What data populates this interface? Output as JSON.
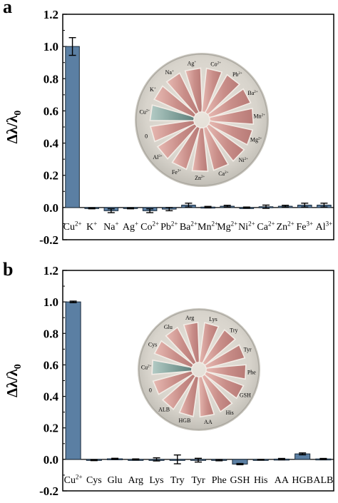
{
  "chart_data": [
    {
      "panel_label": "a",
      "type": "bar",
      "ylabel": "Δλ/λ0",
      "ylim": [
        -0.2,
        1.2
      ],
      "yticks": [
        "-0.2",
        "0.0",
        "0.2",
        "0.4",
        "0.6",
        "0.8",
        "1.0",
        "1.2"
      ],
      "bar_color": "#5b7fa3",
      "categories": [
        {
          "base": "Cu",
          "sup": "2+"
        },
        {
          "base": "K",
          "sup": "+"
        },
        {
          "base": "Na",
          "sup": "+"
        },
        {
          "base": "Ag",
          "sup": "+"
        },
        {
          "base": "Co",
          "sup": "2+"
        },
        {
          "base": "Pb",
          "sup": "2+"
        },
        {
          "base": "Ba",
          "sup": "2+"
        },
        {
          "base": "Mn",
          "sup": "2+"
        },
        {
          "base": "Mg",
          "sup": "2+"
        },
        {
          "base": "Ni",
          "sup": "2+"
        },
        {
          "base": "Ca",
          "sup": "2+"
        },
        {
          "base": "Zn",
          "sup": "2+"
        },
        {
          "base": "Fe",
          "sup": "3+"
        },
        {
          "base": "Al",
          "sup": "3+"
        }
      ],
      "values": [
        1.0,
        -0.005,
        -0.02,
        -0.005,
        -0.02,
        -0.01,
        0.015,
        0.003,
        0.008,
        0.0,
        0.005,
        0.008,
        0.015,
        0.015
      ],
      "errors": [
        0.055,
        0.003,
        0.012,
        0.003,
        0.012,
        0.01,
        0.012,
        0.004,
        0.006,
        0.003,
        0.01,
        0.006,
        0.012,
        0.012
      ],
      "photo_labels": [
        {
          "base": "Ag",
          "sup": "+"
        },
        {
          "base": "Co",
          "sup": "2+"
        },
        {
          "base": "Pb",
          "sup": "2+"
        },
        {
          "base": "Ba",
          "sup": "2+"
        },
        {
          "base": "Mn",
          "sup": "2+"
        },
        {
          "base": "Mg",
          "sup": "2+"
        },
        {
          "base": "Ni",
          "sup": "2+"
        },
        {
          "base": "Ca",
          "sup": "2+"
        },
        {
          "base": "Zn",
          "sup": "2+"
        },
        {
          "base": "Fe",
          "sup": "3+"
        },
        {
          "base": "Al",
          "sup": "3+"
        },
        {
          "base": "0",
          "sup": ""
        },
        {
          "base": "Cu",
          "sup": "2+"
        },
        {
          "base": "K",
          "sup": "+"
        },
        {
          "base": "Na",
          "sup": "+"
        }
      ]
    },
    {
      "panel_label": "b",
      "type": "bar",
      "ylabel": "Δλ/λ0",
      "ylim": [
        -0.2,
        1.2
      ],
      "yticks": [
        "-0.2",
        "0.0",
        "0.2",
        "0.4",
        "0.6",
        "0.8",
        "1.0",
        "1.2"
      ],
      "bar_color": "#5b7fa3",
      "categories": [
        {
          "base": "Cu",
          "sup": "2+"
        },
        {
          "base": "Cys",
          "sup": ""
        },
        {
          "base": "Glu",
          "sup": ""
        },
        {
          "base": "Arg",
          "sup": ""
        },
        {
          "base": "Lys",
          "sup": ""
        },
        {
          "base": "Try",
          "sup": ""
        },
        {
          "base": "Tyr",
          "sup": ""
        },
        {
          "base": "Phe",
          "sup": ""
        },
        {
          "base": "GSH",
          "sup": ""
        },
        {
          "base": "His",
          "sup": ""
        },
        {
          "base": "AA",
          "sup": ""
        },
        {
          "base": "HGB",
          "sup": ""
        },
        {
          "base": "ALB",
          "sup": ""
        }
      ],
      "values": [
        1.0,
        -0.005,
        0.004,
        0.0,
        0.0,
        0.0,
        -0.005,
        -0.005,
        -0.03,
        -0.002,
        0.002,
        0.035,
        0.003
      ],
      "errors": [
        0.005,
        0.003,
        0.003,
        0.003,
        0.01,
        0.028,
        0.012,
        0.004,
        0.004,
        0.002,
        0.004,
        0.006,
        0.003
      ],
      "photo_labels": [
        {
          "base": "Arg",
          "sup": ""
        },
        {
          "base": "Lys",
          "sup": ""
        },
        {
          "base": "Try",
          "sup": ""
        },
        {
          "base": "Tyr",
          "sup": ""
        },
        {
          "base": "Phe",
          "sup": ""
        },
        {
          "base": "GSH",
          "sup": ""
        },
        {
          "base": "His",
          "sup": ""
        },
        {
          "base": "AA",
          "sup": ""
        },
        {
          "base": "HGB",
          "sup": ""
        },
        {
          "base": "ALB",
          "sup": ""
        },
        {
          "base": "0",
          "sup": ""
        },
        {
          "base": "Cu",
          "sup": "2+"
        },
        {
          "base": "Cys",
          "sup": ""
        },
        {
          "base": "Glu",
          "sup": ""
        }
      ]
    }
  ]
}
